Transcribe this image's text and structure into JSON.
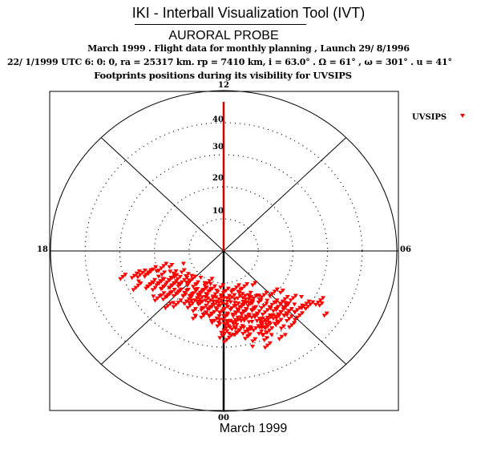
{
  "header": {
    "title": "IKI - Interball Visualization Tool (IVT)",
    "subtitle": "AURORAL PROBE",
    "line1": "March 1999 .  Flight data for monthly planning ,    Launch 29/ 8/1996",
    "line2": "22/ 1/1999 UTC  6: 0: 0, ra =  25317 km. rp =    7410 km, i = 63.0° . Ω =  61° , ω = 301° . u =  41°",
    "line3": "Footprints positions during its visibility for UVSIPS"
  },
  "footer": "March 1999",
  "chart_data": {
    "type": "scatter",
    "projection": "polar (MLT vs. colatitude)",
    "title": "Footprints positions during its visibility for UVSIPS",
    "direction_labels": {
      "top": "12",
      "bottom": "00",
      "left": "18",
      "right": "06"
    },
    "radial_ticks": [
      "10",
      "20",
      "30",
      "40"
    ],
    "radial_range": [
      0,
      50
    ],
    "legend": {
      "label": "UVSIPS",
      "position": "top-right",
      "marker": "down-triangle"
    },
    "colors": {
      "points": "#ff0000",
      "meridian": "#cc0000",
      "axes": "#000000"
    },
    "series": [
      {
        "name": "UVSIPS",
        "unit": "degrees from pole (x: dawn+, y: noon+)",
        "rows": [
          {
            "y": -6,
            "x": [
              -22,
              -20,
              -18,
              -16,
              -13
            ]
          },
          {
            "y": -8,
            "x": [
              -27,
              -24,
              -21,
              -19,
              -17,
              -15,
              -12,
              -10
            ]
          },
          {
            "y": -10,
            "x": [
              -25,
              -22,
              -20,
              -18,
              -16,
              -14,
              -12,
              -10,
              -8,
              -6,
              -3
            ]
          },
          {
            "y": -12,
            "x": [
              -21,
              -19,
              -17,
              -15,
              -13,
              -11,
              -9,
              -7,
              -5,
              -3,
              -1,
              1,
              3,
              5,
              7
            ]
          },
          {
            "y": -14,
            "x": [
              -17,
              -15,
              -13,
              -11,
              -9,
              -7,
              -5,
              -3,
              -1,
              1,
              3,
              5,
              7,
              9,
              11,
              13,
              15
            ]
          },
          {
            "y": -16,
            "x": [
              -14,
              -12,
              -10,
              -8,
              -6,
              -4,
              -2,
              0,
              2,
              4,
              6,
              8,
              10,
              12,
              14,
              16,
              18,
              20,
              25,
              28
            ]
          },
          {
            "y": -18,
            "x": [
              -10,
              -8,
              -6,
              -4,
              -2,
              0,
              2,
              4,
              6,
              8,
              10,
              12,
              14,
              16,
              18,
              20,
              22,
              24,
              27
            ]
          },
          {
            "y": -20,
            "x": [
              -6,
              -4,
              -2,
              0,
              2,
              4,
              6,
              8,
              10,
              12,
              14,
              16,
              18,
              20,
              22
            ]
          },
          {
            "y": -22,
            "x": [
              -3,
              -1,
              1,
              3,
              5,
              7,
              9,
              11,
              13,
              15,
              17,
              19
            ]
          },
          {
            "y": -24,
            "x": [
              -1,
              1,
              3,
              5,
              7,
              9,
              11,
              13,
              15
            ]
          },
          {
            "y": -26,
            "x": [
              1,
              4,
              7,
              10,
              14
            ]
          },
          {
            "y": -28,
            "x": [
              3,
              8,
              12
            ]
          }
        ]
      }
    ]
  }
}
